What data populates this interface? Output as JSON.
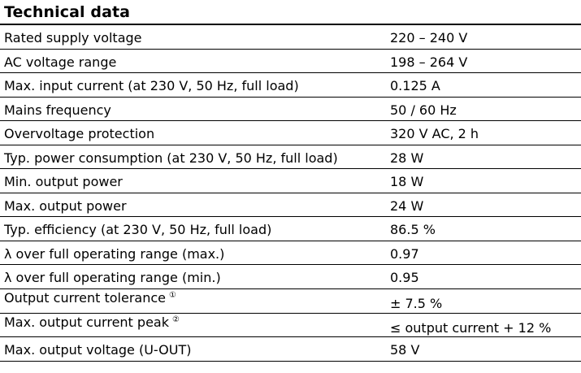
{
  "title": "Technical data",
  "rows": [
    {
      "label": "Rated supply voltage",
      "value": "220 – 240 V"
    },
    {
      "label": "AC voltage range",
      "value": "198 – 264 V"
    },
    {
      "label": "Max. input current (at 230 V, 50 Hz, full load)",
      "value": "0.125 A"
    },
    {
      "label": "Mains frequency",
      "value": "50 / 60 Hz"
    },
    {
      "label": "Overvoltage protection",
      "value": "320 V AC, 2 h"
    },
    {
      "label": "Typ. power consumption (at 230 V, 50 Hz, full load)",
      "value": "28 W"
    },
    {
      "label": "Min. output power",
      "value": "18 W"
    },
    {
      "label": "Max. output power",
      "value": "24 W"
    },
    {
      "label": "Typ. efficiency (at 230 V, 50 Hz, full load)",
      "value": "86.5 %"
    },
    {
      "label": "λ over full operating range (max.)",
      "value": "0.97"
    },
    {
      "label": "λ over full operating range (min.)",
      "value": "0.95"
    },
    {
      "label": "Output current tolerance",
      "note": "①",
      "value": "± 7.5 %"
    },
    {
      "label": "Max. output current peak",
      "note": "②",
      "value": "≤ output current + 12 %"
    },
    {
      "label": "Max. output voltage (U-OUT)",
      "value": "58 V"
    }
  ]
}
